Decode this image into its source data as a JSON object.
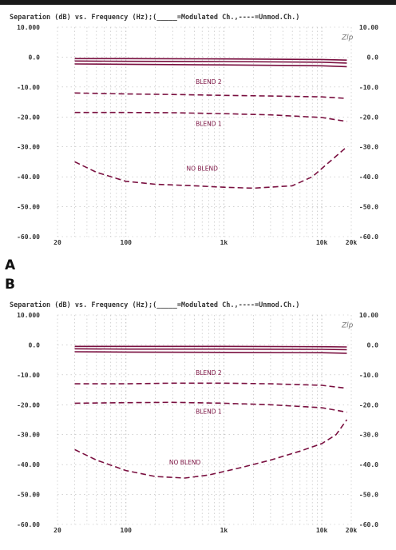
{
  "panels": [
    {
      "label": "A",
      "title": "Separation (dB) vs. Frequency (Hz);(_____=Modulated Ch.,----=Unmod.Ch.)",
      "corner_mark": "Zlp"
    },
    {
      "label": "B",
      "title": "Separation (dB) vs. Frequency (Hz);(_____=Modulated Ch.,----=Unmod.Ch.)",
      "corner_mark": "Zlp"
    }
  ],
  "colors": {
    "curve": "#7a1040",
    "grid": "#b8b8b8",
    "axis_text": "#333333"
  },
  "chart_data": [
    {
      "type": "line",
      "title": "Separation (dB) vs. Frequency (Hz);(_____=Modulated Ch.,----=Unmod.Ch.)",
      "xlabel": "",
      "ylabel": "",
      "x_scale": "log",
      "xlim": [
        20,
        20000
      ],
      "ylim": [
        -60,
        10
      ],
      "x_ticks": [
        "20",
        "100",
        "1k",
        "10k",
        "20k"
      ],
      "y_ticks_left": [
        "10.000",
        "0.0",
        "-10.00",
        "-20.00",
        "-30.00",
        "-40.00",
        "-50.00",
        "-60.00"
      ],
      "y_ticks_right": [
        "10.00",
        "0.0",
        "-10.0",
        "-20.0",
        "-30.0",
        "-40.0",
        "-50.0",
        "-60.0"
      ],
      "grid": true,
      "annotations": [
        {
          "text": "BLEND 2",
          "x": 700,
          "y": -9
        },
        {
          "text": "BLEND 1",
          "x": 700,
          "y": -23
        },
        {
          "text": "NO BLEND",
          "x": 600,
          "y": -38
        }
      ],
      "series": [
        {
          "style": "solid",
          "x": [
            30,
            100,
            1000,
            10000,
            18000
          ],
          "y": [
            -0.5,
            -0.5,
            -0.6,
            -0.8,
            -1.0
          ]
        },
        {
          "style": "solid",
          "x": [
            30,
            100,
            1000,
            10000,
            18000
          ],
          "y": [
            -1.3,
            -1.4,
            -1.5,
            -1.7,
            -2.0
          ]
        },
        {
          "style": "solid",
          "x": [
            30,
            100,
            1000,
            10000,
            18000
          ],
          "y": [
            -2.3,
            -2.4,
            -2.6,
            -2.9,
            -3.2
          ]
        },
        {
          "style": "dashed",
          "x": [
            30,
            100,
            300,
            1000,
            3000,
            10000,
            18000
          ],
          "y": [
            -12,
            -12.3,
            -12.5,
            -12.8,
            -13,
            -13.3,
            -13.8
          ]
        },
        {
          "style": "dashed",
          "x": [
            30,
            100,
            300,
            1000,
            3000,
            10000,
            18000
          ],
          "y": [
            -18.5,
            -18.5,
            -18.6,
            -18.9,
            -19.3,
            -20.2,
            -21.5
          ]
        },
        {
          "style": "dashed",
          "x": [
            30,
            50,
            100,
            200,
            500,
            1000,
            2000,
            5000,
            8000,
            12000,
            18000
          ],
          "y": [
            -35,
            -38.5,
            -41.5,
            -42.5,
            -43,
            -43.5,
            -43.8,
            -43,
            -40,
            -35,
            -30
          ]
        }
      ]
    },
    {
      "type": "line",
      "title": "Separation (dB) vs. Frequency (Hz);(_____=Modulated Ch.,----=Unmod.Ch.)",
      "xlabel": "",
      "ylabel": "",
      "x_scale": "log",
      "xlim": [
        20,
        20000
      ],
      "ylim": [
        -60,
        10
      ],
      "x_ticks": [
        "20",
        "100",
        "1k",
        "10k",
        "20k"
      ],
      "y_ticks_left": [
        "10.000",
        "0.0",
        "-10.00",
        "-20.00",
        "-30.00",
        "-40.00",
        "-50.00",
        "-60.00"
      ],
      "y_ticks_right": [
        "10.00",
        "0.0",
        "-10.0",
        "-20.0",
        "-30.0",
        "-40.0",
        "-50.0",
        "-60.0"
      ],
      "grid": true,
      "annotations": [
        {
          "text": "BLEND 2",
          "x": 700,
          "y": -10
        },
        {
          "text": "BLEND 1",
          "x": 700,
          "y": -23
        },
        {
          "text": "NO BLEND",
          "x": 400,
          "y": -40
        }
      ],
      "series": [
        {
          "style": "solid",
          "x": [
            30,
            100,
            1000,
            10000,
            18000
          ],
          "y": [
            -0.5,
            -0.5,
            -0.5,
            -0.6,
            -0.7
          ]
        },
        {
          "style": "solid",
          "x": [
            30,
            100,
            1000,
            10000,
            18000
          ],
          "y": [
            -1.3,
            -1.4,
            -1.4,
            -1.5,
            -1.6
          ]
        },
        {
          "style": "solid",
          "x": [
            30,
            100,
            1000,
            10000,
            18000
          ],
          "y": [
            -2.3,
            -2.4,
            -2.5,
            -2.6,
            -2.8
          ]
        },
        {
          "style": "dashed",
          "x": [
            30,
            100,
            300,
            1000,
            3000,
            10000,
            18000
          ],
          "y": [
            -13,
            -13,
            -12.8,
            -12.8,
            -13,
            -13.5,
            -14.5
          ]
        },
        {
          "style": "dashed",
          "x": [
            30,
            100,
            300,
            1000,
            3000,
            10000,
            18000
          ],
          "y": [
            -19.5,
            -19.3,
            -19.2,
            -19.5,
            -20,
            -21,
            -22.5
          ]
        },
        {
          "style": "dashed",
          "x": [
            30,
            50,
            100,
            200,
            400,
            700,
            1500,
            3000,
            6000,
            10000,
            14000,
            18000
          ],
          "y": [
            -35,
            -38.5,
            -42,
            -44,
            -44.5,
            -43.5,
            -41,
            -38.5,
            -35.5,
            -33,
            -30,
            -25
          ]
        }
      ]
    }
  ]
}
